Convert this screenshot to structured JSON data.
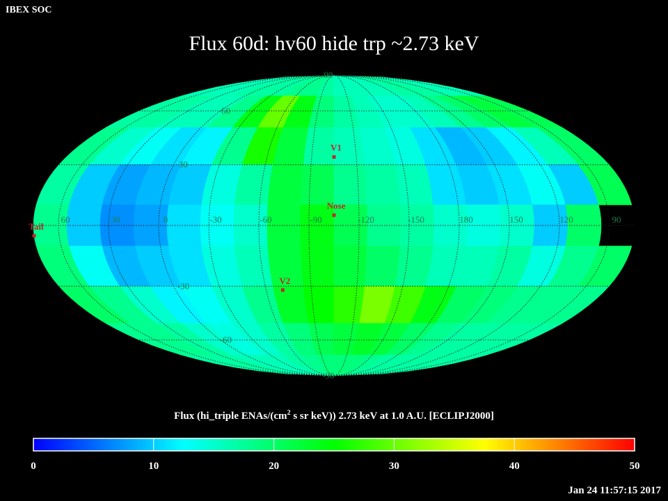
{
  "chart_data": {
    "type": "mollweide-map",
    "header": "IBEX SOC",
    "title": "Flux   60d: hv60 hide trp ~2.73 keV",
    "colorbar_label": [
      "Flux (hi_triple ENAs/(cm",
      "2",
      " s sr keV))  2.73 keV at 1.0 A.U. [ECLIPJ2000]"
    ],
    "timestamp": "Jan 24 11:57:15 2017",
    "center_lon": -105,
    "clim": [
      0,
      50
    ],
    "cticks": [
      0,
      10,
      20,
      30,
      40,
      50
    ],
    "colormap": [
      "#0000ff",
      "#00ffff",
      "#00ff00",
      "#ffff00",
      "#ff0000"
    ],
    "lon_labels": [
      60,
      30,
      0,
      -30,
      -60,
      -90,
      -120,
      -150,
      180,
      150,
      120,
      90
    ],
    "lat_labels": [
      90,
      60,
      30,
      -30,
      -60,
      -90
    ],
    "markers": [
      {
        "label": "V1",
        "lon": -105,
        "lat": 34
      },
      {
        "label": "Nose",
        "lon": -105,
        "lat": 5
      },
      {
        "label": "V2",
        "lon": -71,
        "lat": -32
      },
      {
        "label": "Tail",
        "lon": 75,
        "lat": -5
      }
    ],
    "values": [
      [
        16,
        16,
        16,
        17,
        17,
        17,
        18,
        18,
        17,
        16,
        16,
        16,
        16,
        17,
        17,
        17,
        16,
        16
      ],
      [
        17,
        17,
        16,
        16,
        18,
        24,
        30,
        24,
        19,
        17,
        16,
        15,
        15,
        16,
        18,
        20,
        22,
        21
      ],
      [
        18,
        15,
        13,
        11,
        12,
        18,
        26,
        22,
        17,
        16,
        15,
        14,
        11,
        9,
        10,
        12,
        16,
        20
      ],
      [
        17,
        10,
        8,
        9,
        10,
        14,
        17,
        22,
        21,
        18,
        17,
        16,
        11,
        10,
        11,
        13,
        10,
        21
      ],
      [
        18,
        10,
        7,
        8,
        11,
        13,
        15,
        22,
        24,
        21,
        18,
        17,
        15,
        14,
        15,
        10,
        20,
        null
      ],
      [
        19,
        13,
        9,
        10,
        11,
        14,
        16,
        22,
        24,
        22,
        20,
        18,
        16,
        16,
        17,
        14,
        18,
        20
      ],
      [
        20,
        18,
        15,
        12,
        13,
        15,
        18,
        23,
        25,
        27,
        31,
        28,
        24,
        20,
        19,
        18,
        18,
        18
      ],
      [
        18,
        18,
        17,
        15,
        14,
        15,
        17,
        19,
        21,
        22,
        23,
        22,
        20,
        18,
        17,
        17,
        17,
        17
      ],
      [
        17,
        17,
        17,
        16,
        16,
        16,
        17,
        18,
        19,
        19,
        19,
        18,
        17,
        17,
        17,
        17,
        17,
        17
      ]
    ]
  }
}
